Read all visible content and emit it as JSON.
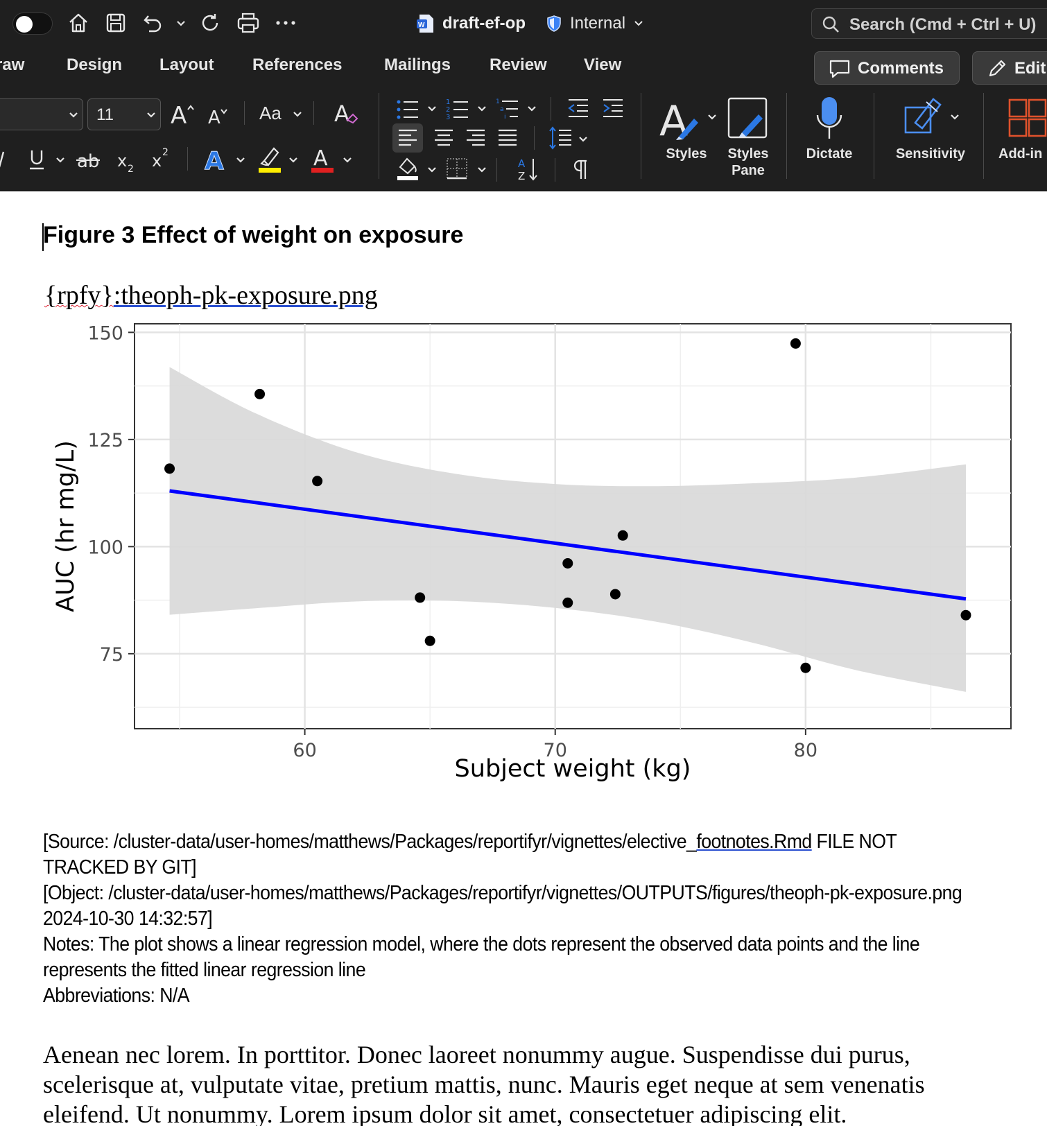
{
  "titlebar": {
    "doc_title": "draft-ef-op",
    "sensitivity": "Internal",
    "search_placeholder": "Search (Cmd + Ctrl + U)"
  },
  "tabs": [
    "raw",
    "Design",
    "Layout",
    "References",
    "Mailings",
    "Review",
    "View"
  ],
  "actions": {
    "comments": "Comments",
    "edit": "Edit"
  },
  "toolbar": {
    "font_size": "11",
    "change_case": "Aa",
    "styles": "Styles",
    "styles_pane_1": "Styles",
    "styles_pane_2": "Pane",
    "dictate": "Dictate",
    "sensitivity": "Sensitivity",
    "addins": "Add-in"
  },
  "icons": [
    "home-icon",
    "save-icon",
    "undo-icon",
    "redo-icon",
    "print-icon",
    "more-icon",
    "word-icon",
    "shield-icon",
    "search-icon",
    "comment-icon",
    "pencil-icon",
    "grow-font-icon",
    "shrink-font-icon",
    "clear-format-icon",
    "underline-icon",
    "strikethrough-icon",
    "subscript-icon",
    "superscript-icon",
    "text-effects-icon",
    "highlight-icon",
    "font-color-icon",
    "bullets-icon",
    "numbering-icon",
    "multilevel-icon",
    "decrease-indent-icon",
    "increase-indent-icon",
    "align-left-icon",
    "align-center-icon",
    "align-right-icon",
    "justify-icon",
    "line-spacing-icon",
    "shading-icon",
    "borders-icon",
    "sort-icon",
    "pilcrow-icon",
    "styles-icon",
    "styles-pane-icon",
    "microphone-icon",
    "sensitivity-icon",
    "addins-icon"
  ],
  "colors": {
    "ribbon": "#1f1f1f",
    "regression_line": "#0000ff",
    "ci_band": "#d9d9d9",
    "highlight": "#ffee00",
    "font_color": "#e02020"
  },
  "document": {
    "heading": "Figure 3 Effect of weight on exposure",
    "field_code_a": "{rpfy}",
    "field_code_b": ":theoph-pk-exposure.png",
    "footnotes": {
      "source_a": "[Source: /cluster-data/user-homes/matthews/Packages/reportifyr/vignettes/elective_",
      "source_b": "footnotes.Rmd",
      "source_c": " FILE NOT",
      "source_d": "TRACKED BY GIT]",
      "object_a": "[Object: /cluster-data/user-homes/matthews/Packages/reportifyr/vignettes/OUTPUTS/figures/theoph-pk-exposure.png",
      "object_b": "2024-10-30 14:32:57]",
      "notes_a": "Notes: The plot shows a linear regression model, where the dots represent the observed data points and the line",
      "notes_b": "represents the fitted linear regression line",
      "abbrev": "Abbreviations: N/A"
    },
    "paragraph": [
      "Aenean nec lorem. In porttitor. Donec laoreet nonummy augue. Suspendisse dui purus,",
      "scelerisque at, vulputate vitae, pretium mattis, nunc. Mauris eget neque at sem venenatis",
      "eleifend. Ut nonummy. Lorem ipsum dolor sit amet, consectetuer adipiscing elit."
    ]
  },
  "chart_data": {
    "type": "scatter",
    "xlabel": "Subject weight (kg)",
    "ylabel": "AUC (hr mg/L)",
    "xlim": [
      53.2,
      88.2
    ],
    "ylim": [
      57.5,
      152
    ],
    "x_ticks": [
      60,
      70,
      80
    ],
    "y_ticks": [
      75,
      100,
      125,
      150
    ],
    "grid": true,
    "points": [
      {
        "x": 54.6,
        "y": 118.2
      },
      {
        "x": 58.2,
        "y": 135.6
      },
      {
        "x": 60.5,
        "y": 115.3
      },
      {
        "x": 64.6,
        "y": 88.1
      },
      {
        "x": 65.0,
        "y": 78.0
      },
      {
        "x": 70.5,
        "y": 96.1
      },
      {
        "x": 70.5,
        "y": 86.9
      },
      {
        "x": 72.4,
        "y": 88.9
      },
      {
        "x": 72.7,
        "y": 102.6
      },
      {
        "x": 79.6,
        "y": 147.4
      },
      {
        "x": 80.0,
        "y": 71.7
      },
      {
        "x": 86.4,
        "y": 84.0
      }
    ],
    "fit_line": [
      {
        "x": 54.6,
        "y": 113.0
      },
      {
        "x": 86.4,
        "y": 87.8
      }
    ],
    "ci_band": {
      "x": [
        54.6,
        58.0,
        62.0,
        66.0,
        70.0,
        74.0,
        78.0,
        82.0,
        86.4
      ],
      "upper": [
        141.9,
        131.2,
        122.1,
        117.0,
        114.6,
        114.1,
        114.8,
        116.1,
        119.2
      ],
      "lower": [
        84.1,
        85.6,
        87.2,
        87.3,
        85.7,
        82.5,
        77.4,
        71.2,
        66.1
      ]
    }
  }
}
